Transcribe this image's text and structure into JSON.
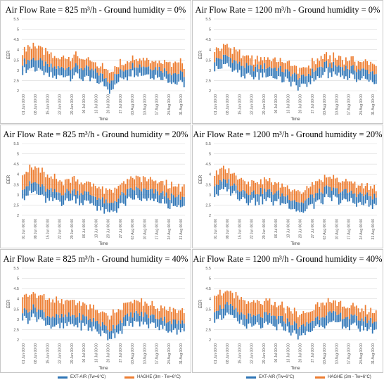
{
  "chart_data": [
    {
      "type": "bar",
      "title": "Air Flow Rate = 825 m³/h - Ground humidity = 0%",
      "xlabel": "Time",
      "ylabel": "EER",
      "ylim": [
        2,
        5.5
      ],
      "yticks": [
        "2",
        "2.5",
        "3",
        "3.5",
        "4",
        "4.5",
        "5",
        "5.5"
      ],
      "categories": [
        "01 Jun 00:00",
        "08 Jun 00:00",
        "15 Jun 00:00",
        "22 Jun 00:00",
        "29 Jun 00:00",
        "06 Jul 00:00",
        "13 Jul 00:00",
        "20 Jul 00:00",
        "27 Jul 00:00",
        "03 Aug 00:00",
        "10 Aug 00:00",
        "17 Aug 00:00",
        "24 Aug 00:00",
        "31 Aug 00:00"
      ],
      "series": [
        {
          "name": "EXT-AIR (Tw=6°C)",
          "color": "#2e75b6",
          "values": [
            3.4,
            3.6,
            3.2,
            3.1,
            3.2,
            3.1,
            2.9,
            2.5,
            3.0,
            3.3,
            3.2,
            3.1,
            2.9,
            2.8
          ]
        },
        {
          "name": "HAGHE (3m - Tw=6°C)",
          "color": "#ed7d31",
          "values": [
            4.0,
            4.2,
            3.8,
            3.6,
            3.7,
            3.5,
            3.3,
            3.0,
            3.4,
            3.7,
            3.6,
            3.5,
            3.4,
            3.3
          ]
        }
      ]
    },
    {
      "type": "bar",
      "title": "Air Flow Rate = 1200 m³/h - Ground humidity = 0%",
      "xlabel": "Time",
      "ylabel": "EER",
      "ylim": [
        2,
        5.5
      ],
      "yticks": [
        "2",
        "2.5",
        "3",
        "3.5",
        "4",
        "4.5",
        "5",
        "5.5"
      ],
      "categories": [
        "01 Jun 00:00",
        "08 Jun 00:00",
        "15 Jun 00:00",
        "22 Jun 00:00",
        "29 Jun 00:00",
        "06 Jul 00:00",
        "13 Jul 00:00",
        "20 Jul 00:00",
        "27 Jul 00:00",
        "03 Aug 00:00",
        "10 Aug 00:00",
        "17 Aug 00:00",
        "24 Aug 00:00",
        "31 Aug 00:00"
      ],
      "series": [
        {
          "name": "EXT-AIR (Tw=6°C)",
          "color": "#2e75b6",
          "values": [
            3.5,
            3.7,
            3.3,
            3.1,
            3.2,
            3.1,
            2.9,
            2.6,
            3.0,
            3.3,
            3.2,
            3.1,
            3.0,
            2.9
          ]
        },
        {
          "name": "HAGHE (3m - Tw=6°C)",
          "color": "#ed7d31",
          "values": [
            4.0,
            4.2,
            3.8,
            3.5,
            3.6,
            3.5,
            3.3,
            3.0,
            3.4,
            3.7,
            3.6,
            3.5,
            3.4,
            3.3
          ]
        }
      ]
    },
    {
      "type": "bar",
      "title": "Air Flow Rate = 825 m³/h - Ground humidity = 20%",
      "xlabel": "Time",
      "ylabel": "EER",
      "ylim": [
        2,
        5.5
      ],
      "yticks": [
        "2",
        "2.5",
        "3",
        "3.5",
        "4",
        "4.5",
        "5",
        "5.5"
      ],
      "categories": [
        "01 Jun 00:00",
        "08 Jun 00:00",
        "15 Jun 00:00",
        "22 Jun 00:00",
        "29 Jun 00:00",
        "06 Jul 00:00",
        "13 Jul 00:00",
        "20 Jul 00:00",
        "27 Jul 00:00",
        "03 Aug 00:00",
        "10 Aug 00:00",
        "17 Aug 00:00",
        "24 Aug 00:00",
        "31 Aug 00:00"
      ],
      "series": [
        {
          "name": "EXT-AIR (Tw=6°C)",
          "color": "#2e75b6",
          "values": [
            3.4,
            3.6,
            3.2,
            3.1,
            3.2,
            3.1,
            2.9,
            2.5,
            3.0,
            3.3,
            3.2,
            3.1,
            2.9,
            2.8
          ]
        },
        {
          "name": "HAGHE (3m - Tw=6°C)",
          "color": "#ed7d31",
          "values": [
            4.1,
            4.3,
            3.9,
            3.7,
            3.8,
            3.6,
            3.4,
            3.1,
            3.5,
            3.8,
            3.7,
            3.6,
            3.4,
            3.3
          ]
        }
      ]
    },
    {
      "type": "bar",
      "title": "Air Flow Rate = 1200 m³/h - Ground humidity = 20%",
      "xlabel": "Time",
      "ylabel": "EER",
      "ylim": [
        2,
        5.5
      ],
      "yticks": [
        "2",
        "2.5",
        "3",
        "3.5",
        "4",
        "4.5",
        "5",
        "5.5"
      ],
      "categories": [
        "01 Jun 00:00",
        "08 Jun 00:00",
        "15 Jun 00:00",
        "22 Jun 00:00",
        "29 Jun 00:00",
        "06 Jul 00:00",
        "13 Jul 00:00",
        "20 Jul 00:00",
        "27 Jul 00:00",
        "03 Aug 00:00",
        "10 Aug 00:00",
        "17 Aug 00:00",
        "24 Aug 00:00",
        "31 Aug 00:00"
      ],
      "series": [
        {
          "name": "EXT-AIR (Tw=6°C)",
          "color": "#2e75b6",
          "values": [
            3.5,
            3.7,
            3.3,
            3.1,
            3.2,
            3.1,
            2.9,
            2.6,
            3.0,
            3.3,
            3.2,
            3.1,
            3.0,
            2.9
          ]
        },
        {
          "name": "HAGHE (3m - Tw=6°C)",
          "color": "#ed7d31",
          "values": [
            4.1,
            4.3,
            3.9,
            3.6,
            3.7,
            3.6,
            3.4,
            3.1,
            3.5,
            3.8,
            3.7,
            3.6,
            3.4,
            3.3
          ]
        }
      ]
    },
    {
      "type": "bar",
      "title": "Air Flow Rate = 825 m³/h - Ground humidity = 40%",
      "xlabel": "Time",
      "ylabel": "EER",
      "ylim": [
        2,
        5.5
      ],
      "yticks": [
        "2",
        "2.5",
        "3",
        "3.5",
        "4",
        "4.5",
        "5",
        "5.5"
      ],
      "categories": [
        "01 Jun 00:00",
        "08 Jun 00:00",
        "15 Jun 00:00",
        "22 Jun 00:00",
        "29 Jun 00:00",
        "06 Jul 00:00",
        "13 Jul 00:00",
        "20 Jul 00:00",
        "27 Jul 00:00",
        "03 Aug 00:00",
        "10 Aug 00:00",
        "17 Aug 00:00",
        "24 Aug 00:00",
        "31 Aug 00:00"
      ],
      "series": [
        {
          "name": "EXT-AIR (Tw=6°C)",
          "color": "#2e75b6",
          "values": [
            3.4,
            3.6,
            3.2,
            3.1,
            3.2,
            3.1,
            2.9,
            2.5,
            3.0,
            3.3,
            3.2,
            3.1,
            2.9,
            2.8
          ]
        },
        {
          "name": "HAGHE (3m - Tw=6°C)",
          "color": "#ed7d31",
          "values": [
            4.2,
            4.3,
            4.0,
            3.8,
            3.9,
            3.7,
            3.5,
            3.2,
            3.6,
            3.9,
            3.8,
            3.6,
            3.5,
            3.4
          ]
        }
      ]
    },
    {
      "type": "bar",
      "title": "Air Flow Rate = 1200 m³/h - Ground humidity = 40%",
      "xlabel": "Time",
      "ylabel": "EER",
      "ylim": [
        2,
        5.5
      ],
      "yticks": [
        "2",
        "2.5",
        "3",
        "3.5",
        "4",
        "4.5",
        "5",
        "5.5"
      ],
      "categories": [
        "01 Jun 00:00",
        "08 Jun 00:00",
        "15 Jun 00:00",
        "22 Jun 00:00",
        "29 Jun 00:00",
        "06 Jul 00:00",
        "13 Jul 00:00",
        "20 Jul 00:00",
        "27 Jul 00:00",
        "03 Aug 00:00",
        "10 Aug 00:00",
        "17 Aug 00:00",
        "24 Aug 00:00",
        "31 Aug 00:00"
      ],
      "series": [
        {
          "name": "EXT-AIR (Tw=6°C)",
          "color": "#2e75b6",
          "values": [
            3.5,
            3.7,
            3.3,
            3.1,
            3.2,
            3.1,
            2.9,
            2.6,
            3.0,
            3.3,
            3.2,
            3.1,
            3.0,
            2.9
          ]
        },
        {
          "name": "HAGHE (3m - Tw=6°C)",
          "color": "#ed7d31",
          "values": [
            4.2,
            4.3,
            4.0,
            3.7,
            3.8,
            3.7,
            3.5,
            3.2,
            3.6,
            3.9,
            3.7,
            3.6,
            3.5,
            3.4
          ]
        }
      ]
    }
  ],
  "legend": {
    "items": [
      {
        "label": "EXT-AIR (Tw=6°C)",
        "color": "#2e75b6"
      },
      {
        "label": "HAGHE (3m - Tw=6°C)",
        "color": "#ed7d31"
      }
    ]
  }
}
